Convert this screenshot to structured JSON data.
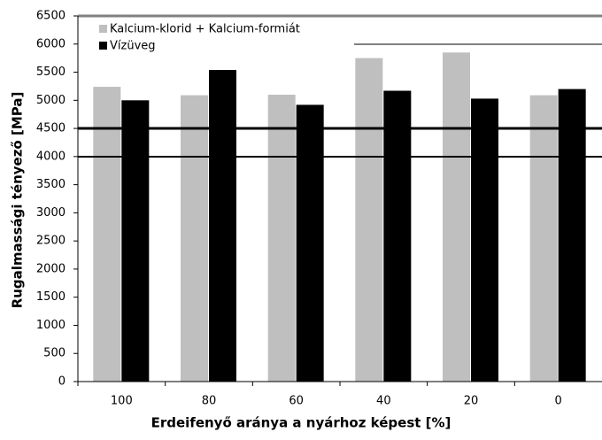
{
  "chart_data": {
    "type": "bar",
    "categories": [
      "100",
      "80",
      "60",
      "40",
      "20",
      "0"
    ],
    "series": [
      {
        "name": "Kalcium-klorid + Kalcium-formiát",
        "color": "#bfbfbf",
        "values": [
          5240,
          5090,
          5100,
          5750,
          5850,
          5090
        ]
      },
      {
        "name": "Vízüveg",
        "color": "#000000",
        "values": [
          5000,
          5540,
          4920,
          5170,
          5030,
          5200
        ]
      }
    ],
    "ylim": [
      0,
      6500
    ],
    "yticks": [
      0,
      500,
      1000,
      1500,
      2000,
      2500,
      3000,
      3500,
      4000,
      4500,
      5000,
      5500,
      6000,
      6500
    ],
    "xlabel": "Erdeifenyő aránya a nyárhoz képest [%]",
    "ylabel": "Rugalmassági tényező [MPa]",
    "grid": false,
    "legend": "top-left"
  }
}
